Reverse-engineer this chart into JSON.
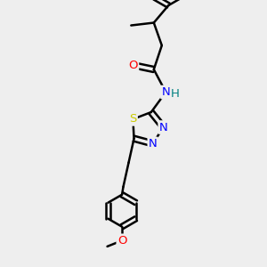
{
  "bg_color": "#eeeeee",
  "line_color": "#000000",
  "bond_width": 1.8,
  "atom_colors": {
    "N": "#0000ff",
    "O": "#ff0000",
    "S": "#cccc00",
    "H": "#008080",
    "C": "#000000"
  },
  "font_size": 9.5,
  "xlim": [
    0,
    10
  ],
  "ylim": [
    0,
    10
  ]
}
